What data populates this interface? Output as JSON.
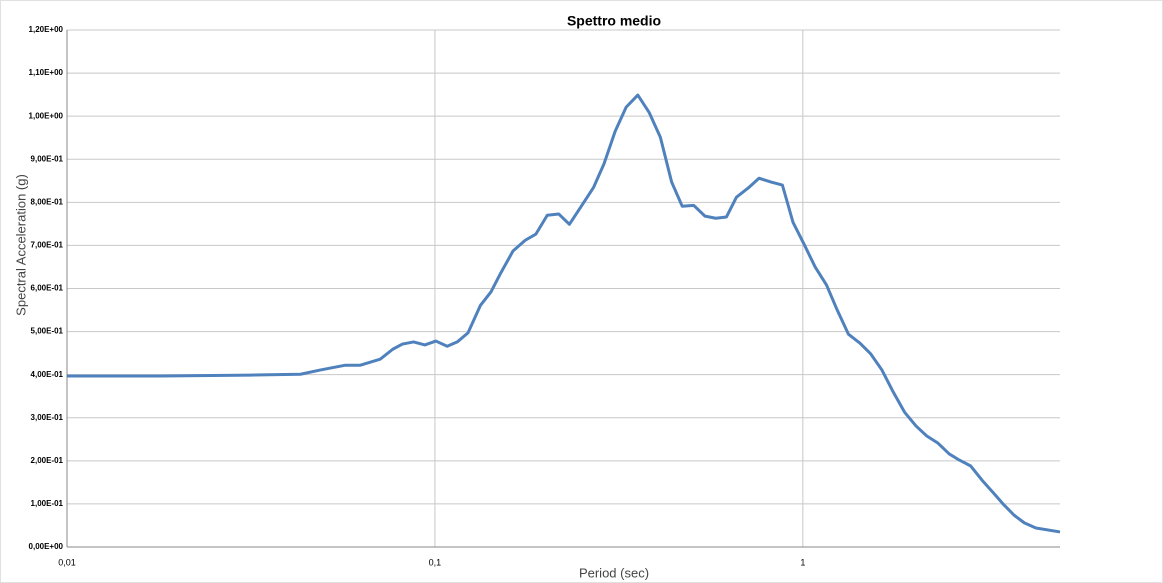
{
  "chart_data": {
    "type": "line",
    "title": "Spettro medio",
    "x_label": "Period (sec)",
    "y_label": "Spectral Acceleration (g)",
    "x_log": true,
    "grid": true,
    "xlim": [
      0.01,
      5
    ],
    "xticks": [
      {
        "value": 0.01,
        "label": "0,01"
      },
      {
        "value": 0.1,
        "label": "0,1"
      },
      1
    ],
    "ylim": [
      0,
      1.2
    ],
    "yticks": [
      {
        "value": 0,
        "label": "0,00E+00"
      },
      {
        "value": 0.1,
        "label": "1,00E-01"
      },
      {
        "value": 0.2,
        "label": "2,00E-01"
      },
      {
        "value": 0.3,
        "label": "3,00E-01"
      },
      {
        "value": 0.4,
        "label": "4,00E-01"
      },
      {
        "value": 0.5,
        "label": "5,00E-01"
      },
      {
        "value": 0.6,
        "label": "6,00E-01"
      },
      {
        "value": 0.7,
        "label": "7,00E-01"
      },
      {
        "value": 0.8,
        "label": "8,00E-01"
      },
      {
        "value": 0.9,
        "label": "9,00E-01"
      },
      {
        "value": 1.0,
        "label": "1,00E+00"
      },
      {
        "value": 1.1,
        "label": "1,10E+00"
      },
      {
        "value": 1.2,
        "label": "1,20E+00"
      }
    ],
    "x": [
      0.01,
      0.0179,
      0.0315,
      0.0431,
      0.0489,
      0.0571,
      0.0627,
      0.071,
      0.0768,
      0.0816,
      0.0875,
      0.0939,
      0.1006,
      0.108,
      0.115,
      0.123,
      0.133,
      0.142,
      0.151,
      0.163,
      0.176,
      0.188,
      0.202,
      0.217,
      0.232,
      0.25,
      0.27,
      0.288,
      0.309,
      0.331,
      0.356,
      0.382,
      0.41,
      0.44,
      0.47,
      0.505,
      0.542,
      0.58,
      0.62,
      0.66,
      0.71,
      0.76,
      0.82,
      0.88,
      0.94,
      1.01,
      1.08,
      1.16,
      1.24,
      1.33,
      1.43,
      1.53,
      1.64,
      1.76,
      1.89,
      2.03,
      2.17,
      2.33,
      2.5,
      2.66,
      2.86,
      3.07,
      3.3,
      3.5,
      3.75,
      4.0,
      4.3,
      5.0
    ],
    "series": [
      {
        "name": "Spettro medio",
        "color": "#4f81bd",
        "values": [
          0.397,
          0.397,
          0.399,
          0.401,
          0.411,
          0.422,
          0.422,
          0.436,
          0.459,
          0.471,
          0.476,
          0.469,
          0.478,
          0.466,
          0.476,
          0.497,
          0.561,
          0.592,
          0.636,
          0.687,
          0.712,
          0.726,
          0.77,
          0.773,
          0.749,
          0.791,
          0.835,
          0.889,
          0.965,
          1.021,
          1.049,
          1.009,
          0.951,
          0.847,
          0.791,
          0.793,
          0.768,
          0.763,
          0.766,
          0.812,
          0.833,
          0.856,
          0.847,
          0.84,
          0.754,
          0.701,
          0.65,
          0.608,
          0.55,
          0.494,
          0.473,
          0.448,
          0.411,
          0.36,
          0.313,
          0.281,
          0.258,
          0.241,
          0.216,
          0.202,
          0.188,
          0.155,
          0.125,
          0.1,
          0.074,
          0.056,
          0.044,
          0.035
        ]
      }
    ]
  }
}
